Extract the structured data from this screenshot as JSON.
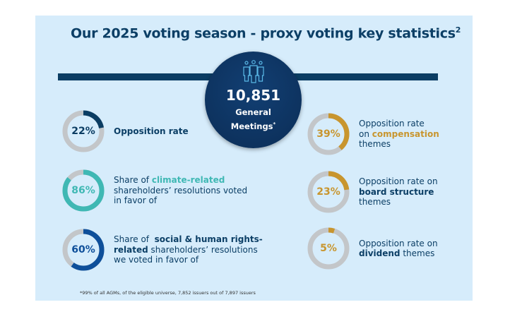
{
  "title": {
    "text": "Our 2025 voting season - proxy voting key statistics",
    "sup": "2"
  },
  "center": {
    "icon": "people-group-icon",
    "number": "10,851",
    "label_line1": "General",
    "label_line2": "Meetings",
    "asterisk": "*"
  },
  "colors": {
    "navy": "#0c3f66",
    "teal": "#3fb8b4",
    "blue": "#0e4f9a",
    "gold": "#c8952e",
    "gray": "#c3c6c9"
  },
  "stats": [
    {
      "value": 22,
      "pct": "22%",
      "color": "#0b3d63",
      "lines": [
        [
          {
            "t": "Opposition rate",
            "b": true
          }
        ]
      ]
    },
    {
      "value": 86,
      "pct": "86%",
      "color": "#3fb8b4",
      "lines": [
        [
          {
            "t": "Share of "
          },
          {
            "t": "climate-related",
            "b": true,
            "c": "#3fb8b4"
          }
        ],
        [
          {
            "t": "shareholders’ resolutions voted"
          }
        ],
        [
          {
            "t": "in favor of"
          }
        ]
      ]
    },
    {
      "value": 60,
      "pct": "60%",
      "color": "#0e4f9a",
      "lines": [
        [
          {
            "t": "Share of  "
          },
          {
            "t": "social & human rights-",
            "b": true
          }
        ],
        [
          {
            "t": "related",
            "b": true
          },
          {
            "t": " shareholders’ resolutions"
          }
        ],
        [
          {
            "t": "we voted in favor of"
          }
        ]
      ]
    },
    {
      "value": 39,
      "pct": "39%",
      "color": "#c8952e",
      "lines": [
        [
          {
            "t": "Opposition rate"
          }
        ],
        [
          {
            "t": "on "
          },
          {
            "t": "compensation",
            "b": true,
            "c": "#c8952e"
          }
        ],
        [
          {
            "t": "themes"
          }
        ]
      ]
    },
    {
      "value": 23,
      "pct": "23%",
      "color": "#c8952e",
      "lines": [
        [
          {
            "t": "Opposition rate on"
          }
        ],
        [
          {
            "t": "board structure",
            "b": true
          }
        ],
        [
          {
            "t": "themes"
          }
        ]
      ]
    },
    {
      "value": 5,
      "pct": "5%",
      "color": "#c8952e",
      "lines": [
        [
          {
            "t": "Opposition rate on"
          }
        ],
        [
          {
            "t": "dividend",
            "b": true
          },
          {
            "t": " themes"
          }
        ]
      ]
    }
  ],
  "footnote": "*99% of all AGMs, of the eligible universe, 7,852 issuers out of 7,897 issuers"
}
